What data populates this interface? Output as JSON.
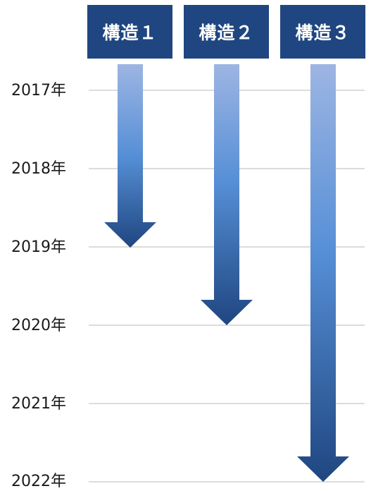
{
  "timeline": {
    "years": [
      {
        "label": "2017年"
      },
      {
        "label": "2018年"
      },
      {
        "label": "2019年"
      },
      {
        "label": "2020年"
      },
      {
        "label": "2021年"
      },
      {
        "label": "2022年"
      }
    ]
  },
  "structures": [
    {
      "label": "構造１",
      "start_year": 2017,
      "end_year": 2019
    },
    {
      "label": "構造２",
      "start_year": 2017,
      "end_year": 2020
    },
    {
      "label": "構造３",
      "start_year": 2017,
      "end_year": 2022
    }
  ],
  "colors": {
    "header_bg": "#1f4680",
    "header_text": "#ffffff",
    "arrow_top": "#9db5e3",
    "arrow_mid": "#568fd6",
    "arrow_bottom": "#1f4680",
    "gridline": "#dcdcdc",
    "year_text": "#1a1a1a"
  }
}
